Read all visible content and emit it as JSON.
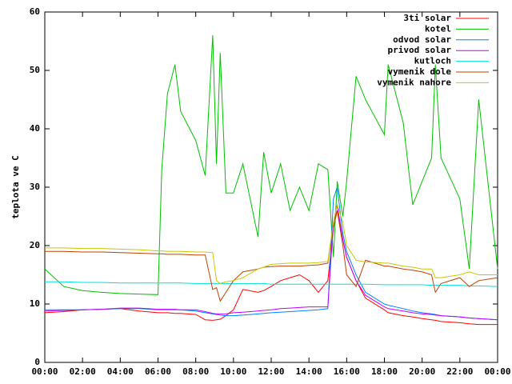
{
  "chart_data": {
    "type": "line",
    "y_label": "teplota ve C",
    "x": [
      0,
      1,
      2,
      3,
      4,
      5,
      6,
      6.2,
      6.5,
      6.9,
      7.2,
      8,
      8.5,
      8.9,
      9.1,
      9.3,
      9.6,
      10,
      10.5,
      11.3,
      11.6,
      12,
      12.5,
      13,
      13.5,
      14,
      14.5,
      15,
      15.3,
      15.5,
      15.8,
      16,
      16.5,
      17,
      18,
      18.2,
      19,
      19.5,
      20,
      20.5,
      20.7,
      21,
      22,
      22.5,
      23,
      24
    ],
    "xlim": [
      0,
      24
    ],
    "xticks": [
      {
        "value": 0,
        "label": "00:00"
      },
      {
        "value": 2,
        "label": "02:00"
      },
      {
        "value": 4,
        "label": "04:00"
      },
      {
        "value": 6,
        "label": "06:00"
      },
      {
        "value": 8,
        "label": "08:00"
      },
      {
        "value": 10,
        "label": "10:00"
      },
      {
        "value": 12,
        "label": "12:00"
      },
      {
        "value": 14,
        "label": "14:00"
      },
      {
        "value": 16,
        "label": "16:00"
      },
      {
        "value": 18,
        "label": "18:00"
      },
      {
        "value": 20,
        "label": "20:00"
      },
      {
        "value": 22,
        "label": "22:00"
      },
      {
        "value": 24,
        "label": "00:00"
      }
    ],
    "ylim": [
      0,
      60
    ],
    "yticks": [
      0,
      10,
      20,
      30,
      40,
      50,
      60
    ],
    "grid": false,
    "legend": "top-right",
    "series": [
      {
        "name": "3ti solar",
        "color": "#ff0000",
        "values": [
          8.5,
          8.7,
          9,
          9.1,
          9.2,
          8.8,
          8.5,
          8.5,
          8.5,
          8.4,
          8.4,
          8.2,
          7.3,
          7.2,
          7.3,
          7.4,
          8,
          9,
          12.5,
          12,
          12.3,
          13,
          14,
          14.5,
          15,
          14,
          12,
          14,
          23,
          26,
          21,
          18,
          14,
          11,
          9,
          8.5,
          8,
          7.8,
          7.5,
          7.3,
          7.2,
          7,
          6.8,
          6.6,
          6.5,
          6.5
        ]
      },
      {
        "name": "kotel",
        "color": "#00c000",
        "values": [
          16,
          13,
          12.3,
          12,
          11.8,
          11.7,
          11.6,
          33,
          46,
          51,
          43,
          38,
          32,
          56,
          34,
          53,
          29,
          29,
          34,
          21.5,
          36,
          29,
          34,
          26,
          30,
          26,
          34,
          33,
          18,
          31,
          25,
          31,
          49,
          45,
          39,
          51,
          41,
          27,
          31,
          35,
          51,
          35,
          28,
          16,
          45,
          16
        ]
      },
      {
        "name": "odvod solar",
        "color": "#0080ff",
        "values": [
          9,
          9,
          9,
          9.1,
          9.2,
          9.2,
          9,
          9,
          9,
          9,
          9,
          8.8,
          8.5,
          8.3,
          8.2,
          8.1,
          8,
          8,
          8.1,
          8.3,
          8.4,
          8.5,
          8.6,
          8.7,
          8.8,
          8.9,
          9,
          9.2,
          28,
          30,
          22,
          19,
          15,
          12,
          10,
          9.8,
          9.2,
          8.8,
          8.5,
          8.3,
          8.2,
          8,
          7.8,
          7.6,
          7.5,
          7.3
        ]
      },
      {
        "name": "privod solar",
        "color": "#c000ff",
        "values": [
          8.8,
          8.9,
          9,
          9.1,
          9.3,
          9.3,
          9.1,
          9.1,
          9.1,
          9.1,
          9,
          9,
          8.7,
          8.4,
          8.3,
          8.3,
          8.3,
          8.5,
          8.6,
          8.8,
          8.9,
          9,
          9.2,
          9.3,
          9.4,
          9.5,
          9.5,
          9.5,
          24,
          27,
          21,
          18,
          14,
          11.5,
          9.5,
          9.2,
          8.8,
          8.5,
          8.3,
          8.2,
          8.1,
          8,
          7.8,
          7.6,
          7.5,
          7.3
        ]
      },
      {
        "name": "kutloch",
        "color": "#00e0e0",
        "values": [
          13.8,
          13.8,
          13.7,
          13.7,
          13.6,
          13.6,
          13.6,
          13.6,
          13.6,
          13.6,
          13.6,
          13.5,
          13.5,
          13.5,
          13.5,
          13.5,
          13.5,
          13.5,
          13.5,
          13.5,
          13.5,
          13.4,
          13.4,
          13.4,
          13.4,
          13.4,
          13.4,
          13.4,
          13.4,
          13.4,
          13.4,
          13.4,
          13.4,
          13.4,
          13.3,
          13.3,
          13.3,
          13.3,
          13.3,
          13.2,
          13.2,
          13.2,
          13.2,
          13.1,
          13.1,
          13
        ]
      },
      {
        "name": "vymenik dole",
        "color": "#c04000",
        "values": [
          19,
          19,
          18.9,
          18.9,
          18.8,
          18.7,
          18.6,
          18.6,
          18.5,
          18.5,
          18.5,
          18.4,
          18.4,
          12.5,
          12.8,
          10.5,
          12,
          14,
          15.5,
          16,
          16.3,
          16.4,
          16.5,
          16.5,
          16.5,
          16.6,
          16.7,
          17,
          24,
          26,
          20,
          15,
          13,
          17.5,
          16.5,
          16.5,
          16,
          15.8,
          15.5,
          15,
          12,
          13.5,
          14.5,
          13,
          14,
          14.5
        ]
      },
      {
        "name": "vymenik nahore",
        "color": "#c8c800",
        "values": [
          19.6,
          19.6,
          19.5,
          19.5,
          19.4,
          19.3,
          19.1,
          19.1,
          19,
          19,
          19,
          18.9,
          18.9,
          18.8,
          14,
          13.5,
          13.8,
          14,
          14.5,
          16,
          16.3,
          16.8,
          16.9,
          17,
          17,
          17,
          17.1,
          17.3,
          24,
          27,
          24,
          20,
          17.5,
          17.2,
          17,
          17,
          16.5,
          16.3,
          16,
          16,
          14.5,
          14.5,
          15,
          15.5,
          15,
          15
        ]
      }
    ]
  }
}
